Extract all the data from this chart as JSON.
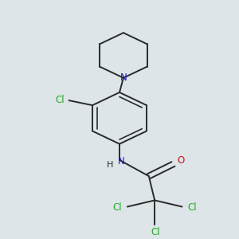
{
  "background_color": "#dde5e8",
  "bond_color": "#2a2a2a",
  "cl_color": "#22aa22",
  "n_color": "#1a1acc",
  "o_color": "#cc1111",
  "line_width": 1.4,
  "figsize": [
    3.0,
    3.0
  ],
  "dpi": 100,
  "xlim": [
    0.3,
    2.7
  ],
  "ylim": [
    0.1,
    2.9
  ]
}
